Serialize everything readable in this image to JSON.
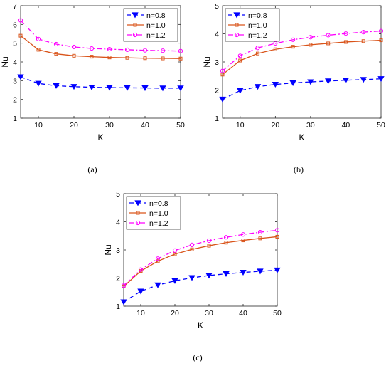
{
  "chart_data": [
    {
      "type": "line",
      "caption": "(a)",
      "xlabel": "K",
      "ylabel": "Nu",
      "xlim": [
        5,
        50
      ],
      "ylim": [
        1,
        7
      ],
      "xticks": [
        10,
        20,
        30,
        40,
        50
      ],
      "yticks": [
        1,
        2,
        3,
        4,
        5,
        6,
        7
      ],
      "legend": "top-right",
      "grid": false,
      "x": [
        5,
        10,
        15,
        20,
        25,
        30,
        35,
        40,
        45,
        50
      ],
      "series": [
        {
          "name": "n=0.8",
          "color": "#0000ff",
          "marker": "triangle-down",
          "line": "dashed",
          "values": [
            3.2,
            2.85,
            2.73,
            2.68,
            2.65,
            2.63,
            2.62,
            2.61,
            2.6,
            2.6
          ]
        },
        {
          "name": "n=1.0",
          "color": "#d95319",
          "marker": "square",
          "line": "solid",
          "values": [
            5.4,
            4.65,
            4.43,
            4.33,
            4.28,
            4.24,
            4.22,
            4.2,
            4.19,
            4.18
          ]
        },
        {
          "name": "n=1.2",
          "color": "#ff00ff",
          "marker": "circle",
          "line": "dashdot",
          "values": [
            6.22,
            5.22,
            4.95,
            4.8,
            4.72,
            4.68,
            4.65,
            4.62,
            4.6,
            4.58
          ]
        }
      ]
    },
    {
      "type": "line",
      "caption": "(b)",
      "xlabel": "K",
      "ylabel": "Nu",
      "xlim": [
        5,
        50
      ],
      "ylim": [
        1,
        5
      ],
      "xticks": [
        10,
        20,
        30,
        40,
        50
      ],
      "yticks": [
        1,
        2,
        3,
        4,
        5
      ],
      "legend": "top-left",
      "grid": false,
      "x": [
        5,
        10,
        15,
        20,
        25,
        30,
        35,
        40,
        45,
        50
      ],
      "series": [
        {
          "name": "n=0.8",
          "color": "#0000ff",
          "marker": "triangle-down",
          "line": "dashed",
          "values": [
            1.67,
            1.98,
            2.12,
            2.2,
            2.25,
            2.29,
            2.32,
            2.35,
            2.37,
            2.4
          ]
        },
        {
          "name": "n=1.0",
          "color": "#d95319",
          "marker": "square",
          "line": "solid",
          "values": [
            2.55,
            3.05,
            3.3,
            3.45,
            3.54,
            3.61,
            3.66,
            3.71,
            3.74,
            3.77
          ]
        },
        {
          "name": "n=1.2",
          "color": "#ff00ff",
          "marker": "circle",
          "line": "dashdot",
          "values": [
            2.68,
            3.22,
            3.5,
            3.66,
            3.79,
            3.88,
            3.95,
            4.01,
            4.06,
            4.1
          ]
        }
      ]
    },
    {
      "type": "line",
      "caption": "(c)",
      "xlabel": "K",
      "ylabel": "Nu",
      "xlim": [
        5,
        50
      ],
      "ylim": [
        1,
        5
      ],
      "xticks": [
        10,
        20,
        30,
        40,
        50
      ],
      "yticks": [
        1,
        2,
        3,
        4,
        5
      ],
      "legend": "top-left",
      "grid": false,
      "x": [
        5,
        10,
        15,
        20,
        25,
        30,
        35,
        40,
        45,
        50
      ],
      "series": [
        {
          "name": "n=0.8",
          "color": "#0000ff",
          "marker": "triangle-down",
          "line": "dashed",
          "values": [
            1.15,
            1.53,
            1.75,
            1.9,
            2.01,
            2.09,
            2.15,
            2.2,
            2.24,
            2.28
          ]
        },
        {
          "name": "n=1.0",
          "color": "#d95319",
          "marker": "square",
          "line": "solid",
          "values": [
            1.7,
            2.25,
            2.6,
            2.85,
            3.02,
            3.15,
            3.26,
            3.34,
            3.41,
            3.47
          ]
        },
        {
          "name": "n=1.2",
          "color": "#ff00ff",
          "marker": "circle",
          "line": "dashdot",
          "values": [
            1.73,
            2.3,
            2.69,
            2.98,
            3.18,
            3.33,
            3.45,
            3.55,
            3.63,
            3.7
          ]
        }
      ]
    }
  ]
}
